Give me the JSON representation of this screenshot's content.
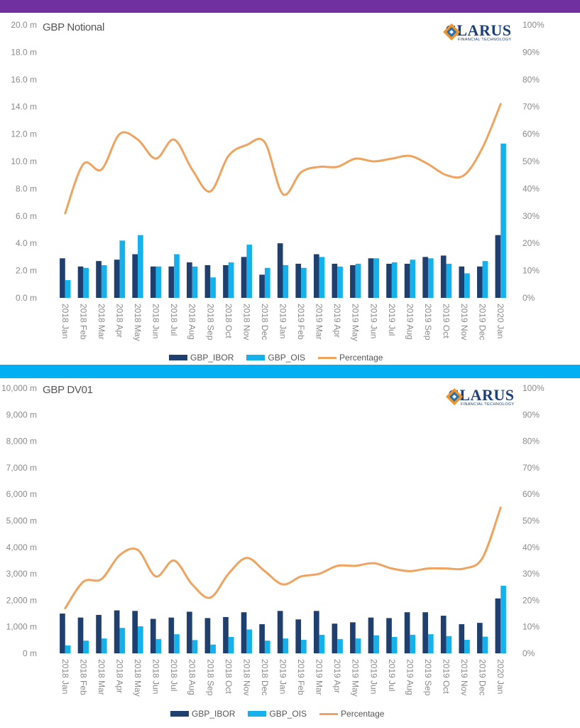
{
  "colors": {
    "band_top": "#7030a0",
    "band_mid": "#00b0f0",
    "ibor": "#1f3f6e",
    "ois": "#14b1ec",
    "percentage": "#f0a35e",
    "logo_text": "#1c3f7a",
    "logo_orange": "#f0932b",
    "logo_blue": "#1c70b5"
  },
  "logo": {
    "word": "CLARUS",
    "sub": "FINANCIAL TECHNOLOGY"
  },
  "chart_data": [
    {
      "type": "bar",
      "title": "GBP Notional",
      "categories": [
        "2018 Jan",
        "2018 Feb",
        "2018 Mar",
        "2018 Apr",
        "2018 May",
        "2018 Jun",
        "2018 Jul",
        "2018 Aug",
        "2018 Sep",
        "2018 Oct",
        "2018 Nov",
        "2018 Dec",
        "2019 Jan",
        "2019 Feb",
        "2019 Mar",
        "2019 Apr",
        "2019 May",
        "2019 Jun",
        "2019 Jul",
        "2019 Aug",
        "2019 Sep",
        "2019 Oct",
        "2019 Nov",
        "2019 Dec",
        "2020 Jan"
      ],
      "y_ticks": [
        "0.0 m",
        "2.0 m",
        "4.0 m",
        "6.0 m",
        "8.0 m",
        "10.0 m",
        "12.0 m",
        "14.0 m",
        "16.0 m",
        "18.0 m",
        "20.0 m"
      ],
      "y2_ticks": [
        "0%",
        "10%",
        "20%",
        "30%",
        "40%",
        "50%",
        "60%",
        "70%",
        "80%",
        "90%",
        "100%"
      ],
      "ylim": [
        0,
        20
      ],
      "y2lim": [
        0,
        100
      ],
      "series": [
        {
          "name": "GBP_IBOR",
          "kind": "bar",
          "axis": "left",
          "values": [
            2.9,
            2.3,
            2.7,
            2.8,
            3.2,
            2.3,
            2.3,
            2.6,
            2.4,
            2.4,
            3.0,
            1.7,
            4.0,
            2.5,
            3.2,
            2.5,
            2.4,
            2.9,
            2.5,
            2.5,
            3.0,
            3.1,
            2.3,
            2.3,
            4.6
          ]
        },
        {
          "name": "GBP_OIS",
          "kind": "bar",
          "axis": "left",
          "values": [
            1.3,
            2.2,
            2.4,
            4.2,
            4.6,
            2.3,
            3.2,
            2.3,
            1.5,
            2.6,
            3.9,
            2.2,
            2.4,
            2.2,
            3.0,
            2.3,
            2.5,
            2.9,
            2.6,
            2.8,
            2.9,
            2.5,
            1.8,
            2.7,
            11.3
          ]
        },
        {
          "name": "Percentage",
          "kind": "line",
          "axis": "right",
          "values": [
            31,
            49,
            47,
            60,
            58,
            51,
            58,
            47,
            39,
            52,
            56,
            57,
            38,
            46,
            48,
            48,
            51,
            50,
            51,
            52,
            49,
            45,
            45,
            55,
            71
          ]
        }
      ],
      "legend": "bottom",
      "grid": false
    },
    {
      "type": "bar",
      "title": "GBP DV01",
      "categories": [
        "2018 Jan",
        "2018 Feb",
        "2018 Mar",
        "2018 Apr",
        "2018 May",
        "2018 Jun",
        "2018 Jul",
        "2018 Aug",
        "2018 Sep",
        "2018 Oct",
        "2018 Nov",
        "2018 Dec",
        "2019 Jan",
        "2019 Feb",
        "2019 Mar",
        "2019 Apr",
        "2019 May",
        "2019 Jun",
        "2019 Jul",
        "2019 Aug",
        "2019 Sep",
        "2019 Oct",
        "2019 Nov",
        "2019 Dec",
        "2020 Jan"
      ],
      "y_ticks": [
        "0 m",
        "1,000 m",
        "2,000 m",
        "3,000 m",
        "4,000 m",
        "5,000 m",
        "6,000 m",
        "7,000 m",
        "8,000 m",
        "9,000 m",
        "10,000 m"
      ],
      "y2_ticks": [
        "0%",
        "10%",
        "20%",
        "30%",
        "40%",
        "50%",
        "60%",
        "70%",
        "80%",
        "90%",
        "100%"
      ],
      "ylim": [
        0,
        10000
      ],
      "y2lim": [
        0,
        100
      ],
      "series": [
        {
          "name": "GBP_IBOR",
          "kind": "bar",
          "axis": "left",
          "values": [
            1500,
            1350,
            1450,
            1620,
            1600,
            1300,
            1350,
            1570,
            1330,
            1370,
            1550,
            1100,
            1600,
            1280,
            1600,
            1120,
            1170,
            1350,
            1330,
            1550,
            1550,
            1420,
            1100,
            1150,
            2070
          ]
        },
        {
          "name": "GBP_OIS",
          "kind": "bar",
          "axis": "left",
          "values": [
            300,
            480,
            560,
            960,
            1020,
            540,
            720,
            500,
            330,
            620,
            900,
            480,
            560,
            510,
            700,
            540,
            560,
            680,
            620,
            700,
            720,
            650,
            510,
            630,
            2550
          ]
        },
        {
          "name": "Percentage",
          "kind": "line",
          "axis": "right",
          "values": [
            17,
            27,
            28,
            37,
            39,
            29,
            35,
            26,
            21,
            30,
            36,
            31,
            26,
            29,
            30,
            33,
            33,
            34,
            32,
            31,
            32,
            32,
            32,
            36,
            55
          ]
        }
      ],
      "legend": "bottom",
      "grid": false
    }
  ]
}
